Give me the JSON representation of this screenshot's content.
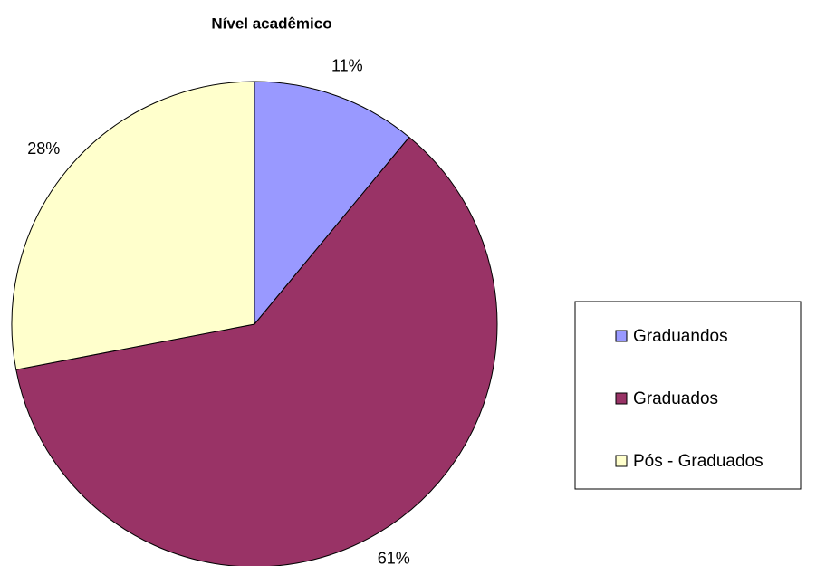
{
  "chart_data": {
    "type": "pie",
    "title": "Nível acadêmico",
    "categories": [
      "Graduandos",
      "Graduados",
      "Pós - Graduados"
    ],
    "values": [
      11,
      61,
      28
    ],
    "value_labels": [
      "11%",
      "61%",
      "28%"
    ],
    "colors": [
      "#9999ff",
      "#993366",
      "#ffffcc"
    ],
    "legend": "right"
  }
}
